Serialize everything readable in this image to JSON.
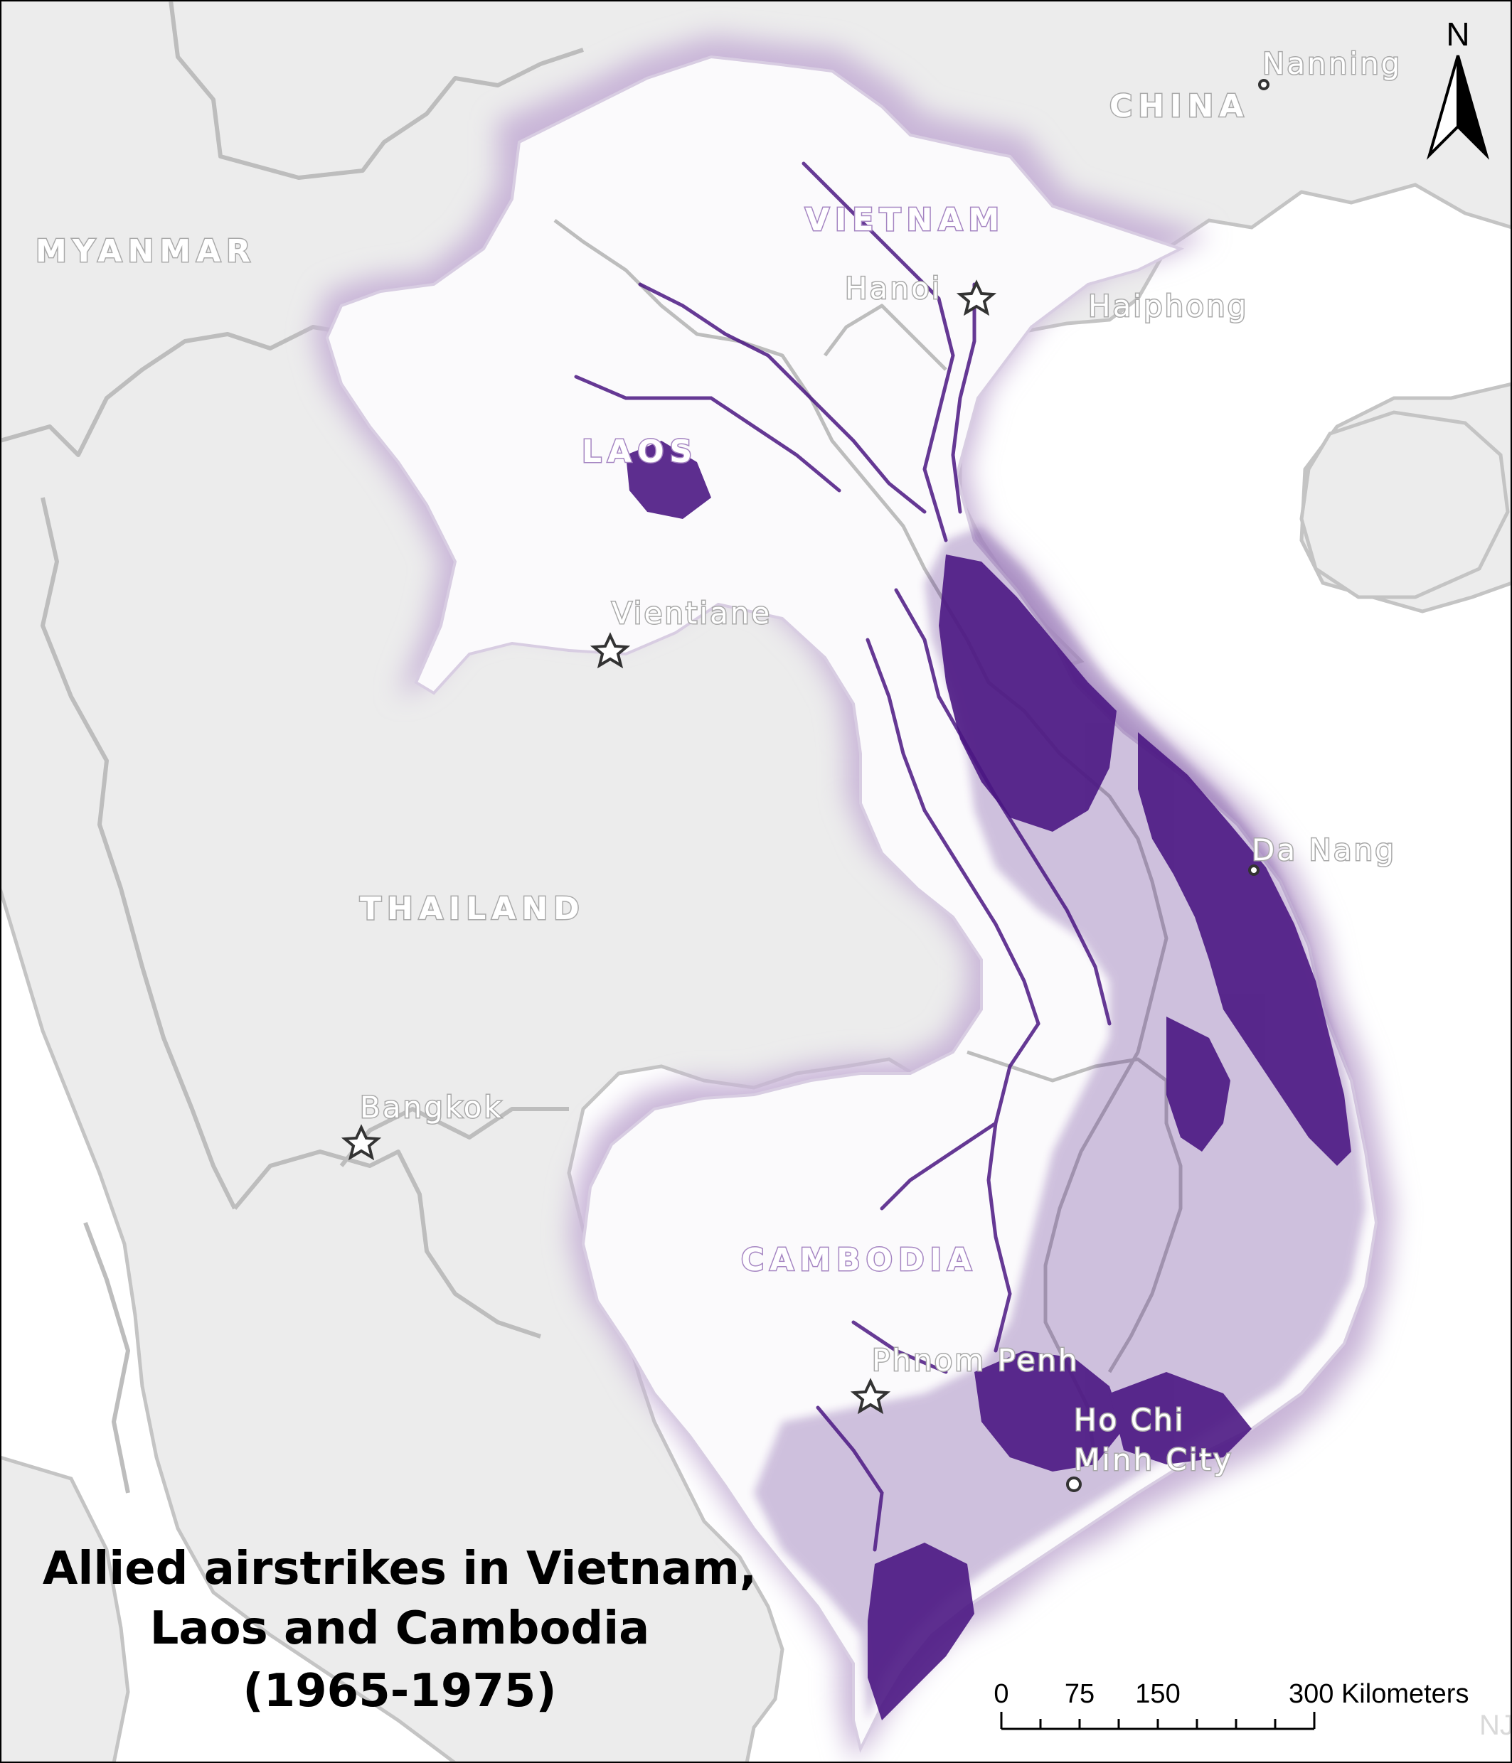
{
  "map": {
    "title_lines": [
      "Allied airstrikes in Vietnam,",
      "Laos and Cambodia",
      "(1965-1975)"
    ],
    "credit": "NJC",
    "north_arrow_label": "N",
    "scale_bar": {
      "ticks": [
        "0",
        "75",
        "150",
        "300 Kilometers"
      ]
    },
    "countries": [
      {
        "id": "myanmar",
        "label": "MYANMAR",
        "focus": false
      },
      {
        "id": "china",
        "label": "CHINA",
        "focus": false
      },
      {
        "id": "thailand",
        "label": "THAILAND",
        "focus": false
      },
      {
        "id": "vietnam",
        "label": "VIETNAM",
        "focus": true
      },
      {
        "id": "laos",
        "label": "LAOS",
        "focus": true
      },
      {
        "id": "cambodia",
        "label": "CAMBODIA",
        "focus": true
      }
    ],
    "cities": [
      {
        "id": "nanning",
        "label": "Nanning",
        "symbol": "circle"
      },
      {
        "id": "hanoi",
        "label": "Hanoi",
        "symbol": "star"
      },
      {
        "id": "haiphong",
        "label": "Haiphong",
        "symbol": "none"
      },
      {
        "id": "vientiane",
        "label": "Vientiane",
        "symbol": "star"
      },
      {
        "id": "da-nang",
        "label": "Da Nang",
        "symbol": "circle"
      },
      {
        "id": "bangkok",
        "label": "Bangkok",
        "symbol": "star"
      },
      {
        "id": "phnom-penh",
        "label": "Phnom Penh",
        "symbol": "star"
      },
      {
        "id": "ho-chi-minh-city",
        "label_lines": [
          "Ho Chi",
          "Minh City"
        ],
        "symbol": "circle"
      }
    ],
    "colors": {
      "sea": "#ffffff",
      "land": "#ececec",
      "border": "#bdbdbd",
      "focus_land": "#fbfafc",
      "focus_halo": "#c9b6d8",
      "strike": "#4b1783",
      "label_fill": "#ffffff",
      "label_outline": "#a9a9a9",
      "title_text": "#000000",
      "credit_text": "#d9d9d9"
    }
  }
}
